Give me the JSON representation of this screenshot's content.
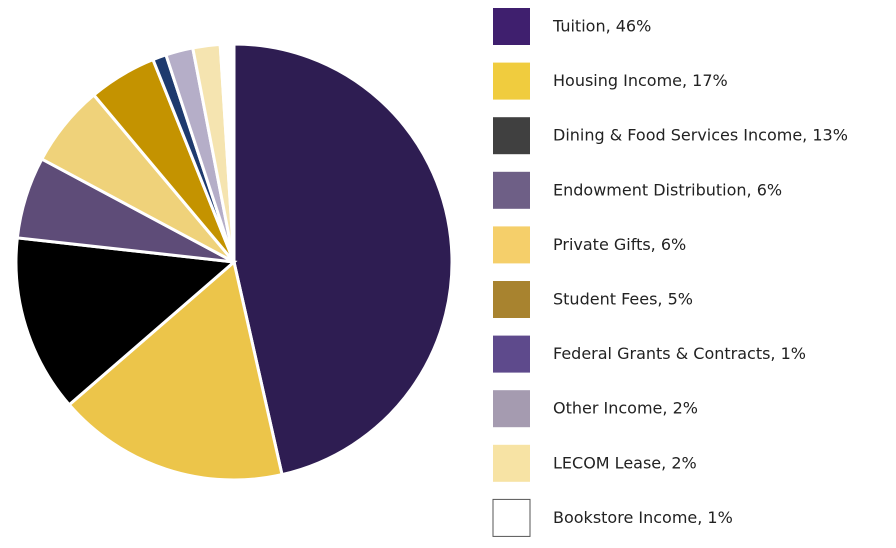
{
  "chart_data": {
    "type": "pie",
    "categories": [
      "Tuition, 46%",
      "Housing Income, 17%",
      "Dining & Food Services Income, 13%",
      "Endowment Distribution, 6%",
      "Private Gifts, 6%",
      "Student Fees, 5%",
      "Federal Grants & Contracts, 1%",
      "Other Income, 2%",
      "LECOM Lease, 2%",
      "Bookstore Income, 1%"
    ],
    "values": [
      46,
      17,
      13,
      6,
      6,
      5,
      1,
      2,
      2,
      1
    ],
    "colors": [
      "#2e1d52",
      "#ecc54a",
      "#000000",
      "#5e4c78",
      "#efd27a",
      "#c49300",
      "#1e3a6e",
      "#b5aec8",
      "#f5e4b0",
      "#ffffff"
    ],
    "legend_colors": [
      "#3f1f6e",
      "#f0cc3e",
      "#404040",
      "#6e5f86",
      "#f5cf6a",
      "#a8832f",
      "#5e4a8c",
      "#a59bb0",
      "#f7e3a4",
      "#ffffff"
    ]
  }
}
